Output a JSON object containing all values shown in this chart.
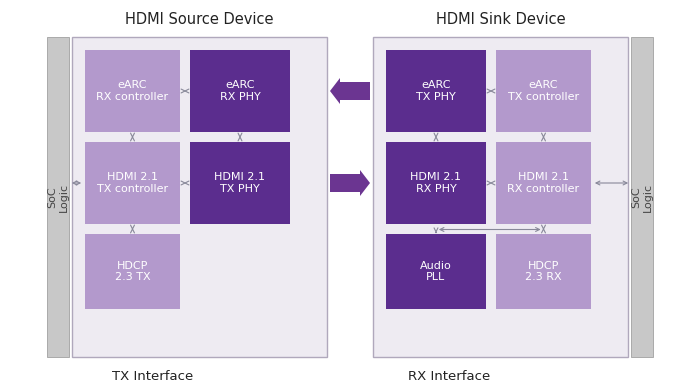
{
  "title_left": "HDMI Source Device",
  "title_right": "HDMI Sink Device",
  "label_left": "TX Interface",
  "label_right": "RX Interface",
  "soc_label": "SoC\nLogic",
  "bg_color": "#ffffff",
  "light_purple": "#b399cc",
  "dark_purple": "#5b2d8e",
  "outer_box_fill": "#eeebf2",
  "outer_box_edge": "#b0a8bc",
  "soc_bar_color": "#c8c8c8",
  "soc_bar_edge": "#aaaaaa",
  "arrow_fill": "#6b3591",
  "small_arrow_color": "#888899",
  "title_fontsize": 10.5,
  "label_fontsize": 9.5,
  "block_fontsize": 8,
  "soc_fontsize": 8
}
